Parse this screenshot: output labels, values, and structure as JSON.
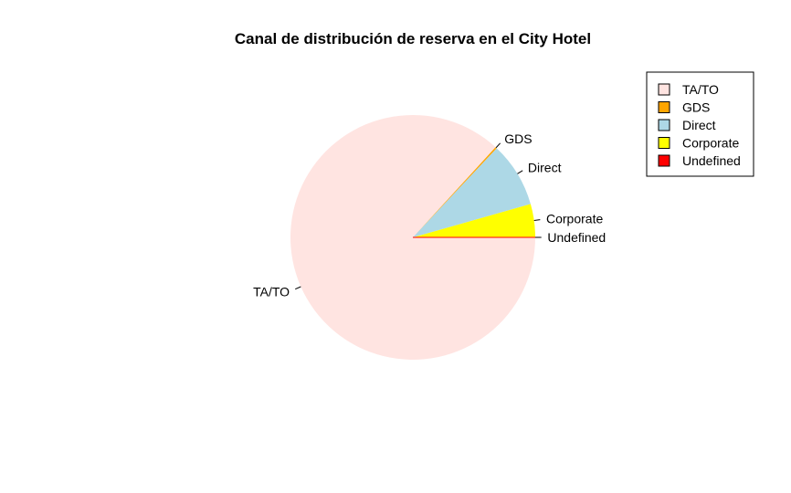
{
  "chart_data": {
    "type": "pie",
    "title": "Canal de distribución de reserva en el City Hotel",
    "start_angle_deg": 0,
    "direction": "counterclockwise",
    "slices": [
      {
        "label": "Corporate",
        "value": 4.4,
        "color": "#ffff00"
      },
      {
        "label": "Direct",
        "value": 8.6,
        "color": "#add8e6"
      },
      {
        "label": "GDS",
        "value": 0.2,
        "color": "#ffa500"
      },
      {
        "label": "TA/TO",
        "value": 86.8,
        "color": "#ffe4e1"
      },
      {
        "label": "Undefined",
        "value": 0.0,
        "color": "#ff0000"
      }
    ],
    "legend": {
      "position": "top-right",
      "entries": [
        "TA/TO",
        "GDS",
        "Direct",
        "Corporate",
        "Undefined"
      ],
      "colors": [
        "#ffe4e1",
        "#ffa500",
        "#add8e6",
        "#ffff00",
        "#ff0000"
      ]
    }
  }
}
